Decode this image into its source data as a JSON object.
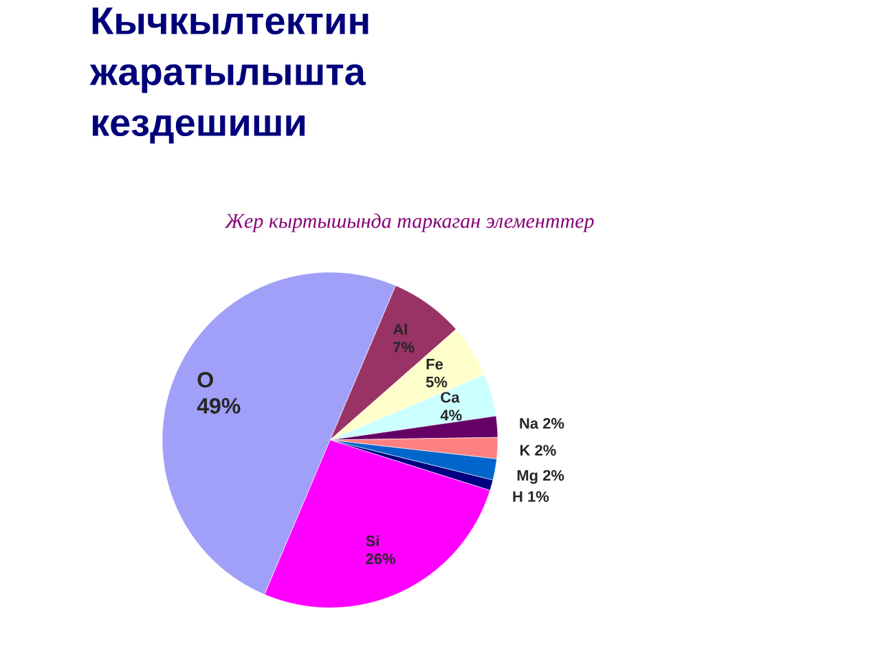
{
  "chart_data": {
    "type": "pie",
    "title": "Кычкылтектин жаратылышта кездешиши",
    "subtitle": "*Жер кыртышында таркаган элементтер*",
    "categories": [
      "Al",
      "Fe",
      "Ca",
      "Na",
      "K",
      "Mg",
      "H",
      "Si",
      "O"
    ],
    "values": [
      7,
      5,
      4,
      2,
      2,
      2,
      1,
      26,
      49
    ],
    "value_labels": [
      "7%",
      "5%",
      "4%",
      "2%",
      "2%",
      "2%",
      "1%",
      "26%",
      "49%"
    ],
    "colors": [
      "#993366",
      "#ffffcc",
      "#ccffff",
      "#660066",
      "#ff8080",
      "#0066cc",
      "#000080",
      "#ff00ff",
      "#a0a0f8"
    ]
  }
}
